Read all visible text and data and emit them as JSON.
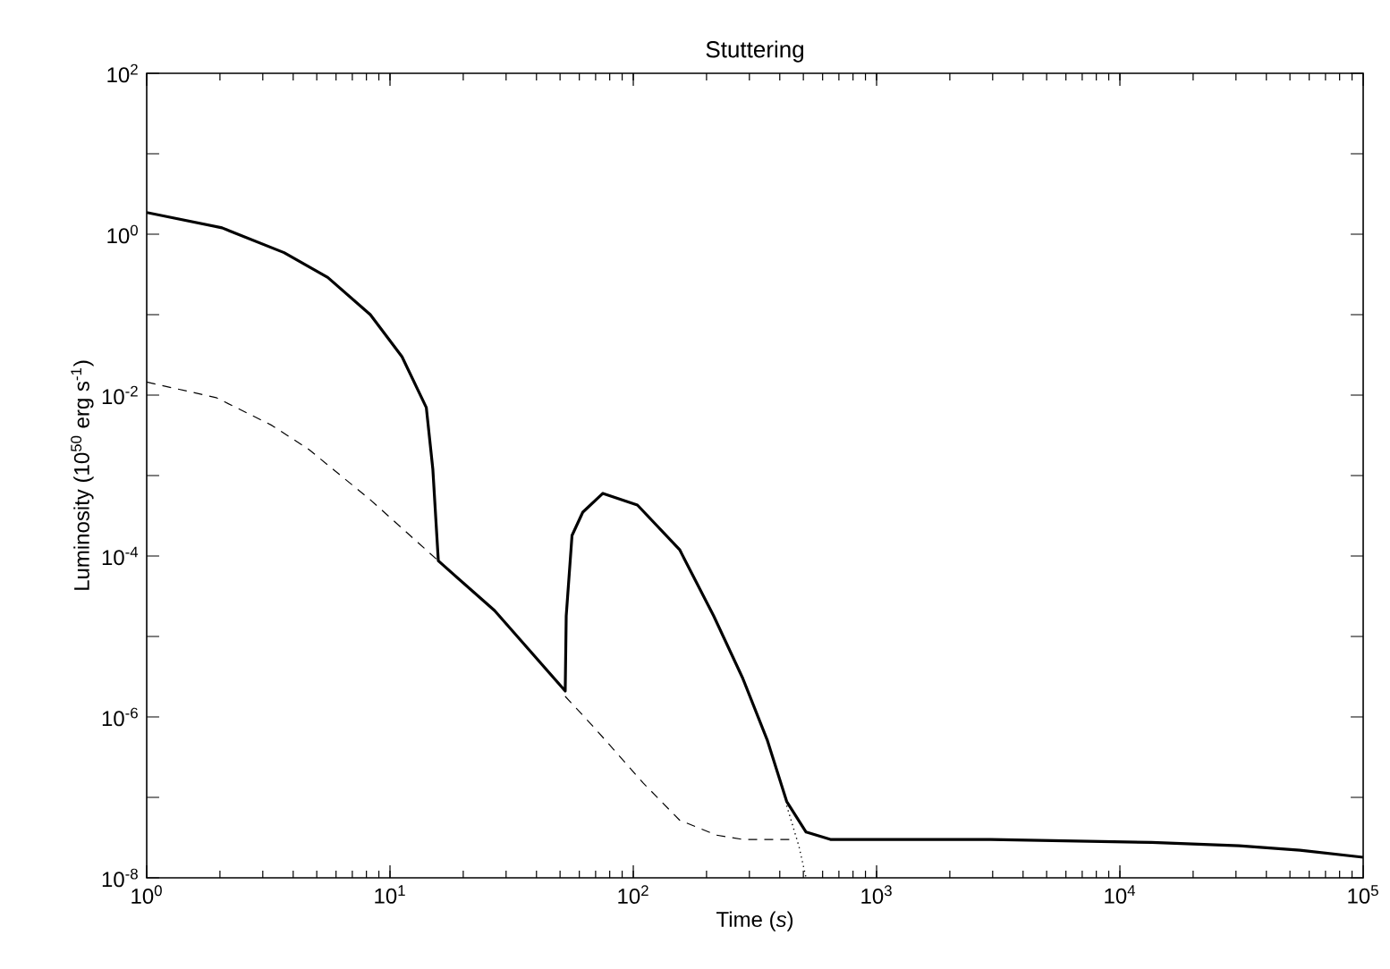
{
  "chart_data": {
    "type": "line",
    "title": "Stuttering",
    "xlabel": "Time (*s*)",
    "ylabel": "Luminosity (10$^{50}$ erg s$^{-1}$)",
    "log": "xy",
    "marker": "none",
    "xlim": [
      1,
      100000
    ],
    "ylim": [
      1e-08,
      100
    ],
    "xticks": [
      {
        "value": 1,
        "label": "10$^{0}$"
      },
      {
        "value": 10,
        "label": "10$^{1}$"
      },
      {
        "value": 100,
        "label": "10$^{2}$"
      },
      {
        "value": 1000,
        "label": "10$^{3}$"
      },
      {
        "value": 10000,
        "label": "10$^{4}$"
      },
      {
        "value": 100000,
        "label": "10$^{5}$"
      }
    ],
    "yticks": [
      {
        "value": 1e-08,
        "label": "10$^{-8}$"
      },
      {
        "value": 1e-07,
        "label": null
      },
      {
        "value": 1e-06,
        "label": "10$^{-6}$"
      },
      {
        "value": 1e-05,
        "label": null
      },
      {
        "value": 0.0001,
        "label": "10$^{-4}$"
      },
      {
        "value": 0.001,
        "label": null
      },
      {
        "value": 0.01,
        "label": "10$^{-2}$"
      },
      {
        "value": 0.1,
        "label": null
      },
      {
        "value": 1,
        "label": "10$^{0}$"
      },
      {
        "value": 10,
        "label": null
      },
      {
        "value": 100,
        "label": "10$^{2}$"
      }
    ],
    "series": [
      {
        "color": "#000000",
        "line_style": "solid",
        "x": [
          1,
          2.04,
          3.67,
          5.55,
          8.3,
          11.2,
          14.1,
          15,
          15.8,
          26.9,
          52.5,
          53,
          56,
          62,
          75,
          104,
          155,
          214,
          282,
          355,
          427,
          513,
          646,
          2950,
          13500,
          30900,
          55000,
          100000
        ],
        "values": [
          1.86,
          1.2,
          0.59,
          0.29,
          0.1,
          0.03,
          0.007,
          0.0012,
          8.7e-05,
          2.1e-05,
          2.1e-06,
          1.8e-05,
          0.00018,
          0.00035,
          0.0006,
          0.00043,
          0.00012,
          1.8e-05,
          3e-06,
          5.2e-07,
          8.9e-08,
          3.7e-08,
          3e-08,
          3e-08,
          2.75e-08,
          2.5e-08,
          2.2e-08,
          1.8e-08
        ]
      },
      {
        "color": "#000000",
        "line_style": "dashed",
        "x": [
          1,
          1.93,
          3.27,
          4.65,
          8.3,
          15.8,
          30,
          52.5,
          69,
          110,
          155,
          219,
          282,
          447
        ],
        "values": [
          0.0145,
          0.0093,
          0.0042,
          0.0021,
          0.0005,
          8.7e-05,
          null,
          1.8e-06,
          7.4e-07,
          1.5e-07,
          5.2e-08,
          3.4e-08,
          3e-08,
          3e-08
        ]
      },
      {
        "color": "#000000",
        "line_style": "dotted",
        "x": [
          427,
          479,
          513
        ],
        "values": [
          7.9e-08,
          2.5e-08,
          1e-08
        ]
      }
    ]
  }
}
